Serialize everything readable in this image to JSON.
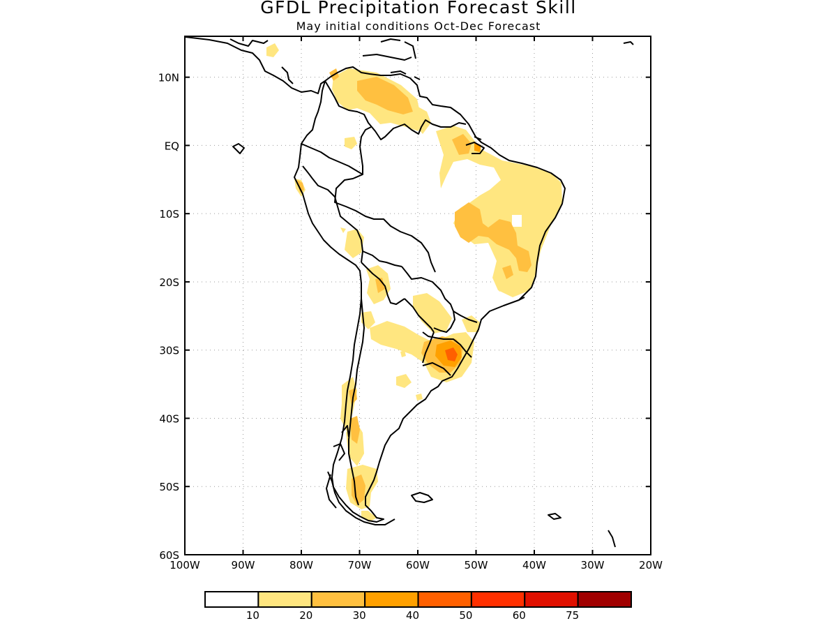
{
  "header": {
    "title": "GFDL Precipitation Forecast Skill",
    "subtitle": "May initial conditions  Oct-Dec Forecast"
  },
  "map": {
    "lon_range": [
      -100,
      -20
    ],
    "lat_range": [
      -60,
      16
    ],
    "lat_ticks": [
      {
        "value": 10,
        "label": "10N"
      },
      {
        "value": 0,
        "label": "EQ"
      },
      {
        "value": -10,
        "label": "10S"
      },
      {
        "value": -20,
        "label": "20S"
      },
      {
        "value": -30,
        "label": "30S"
      },
      {
        "value": -40,
        "label": "40S"
      },
      {
        "value": -50,
        "label": "50S"
      },
      {
        "value": -60,
        "label": "60S"
      }
    ],
    "lon_ticks": [
      {
        "value": -100,
        "label": "100W"
      },
      {
        "value": -90,
        "label": "90W"
      },
      {
        "value": -80,
        "label": "80W"
      },
      {
        "value": -70,
        "label": "70W"
      },
      {
        "value": -60,
        "label": "60W"
      },
      {
        "value": -50,
        "label": "50W"
      },
      {
        "value": -40,
        "label": "40W"
      },
      {
        "value": -30,
        "label": "30W"
      },
      {
        "value": -20,
        "label": "20W"
      }
    ],
    "grid": "dotted"
  },
  "colorbar": {
    "colors": [
      "#ffffff",
      "#ffe680",
      "#ffc040",
      "#ffa000",
      "#ff6000",
      "#ff3000",
      "#e01000",
      "#a00000"
    ],
    "labels": [
      "10",
      "20",
      "30",
      "40",
      "50",
      "60",
      "75"
    ]
  }
}
